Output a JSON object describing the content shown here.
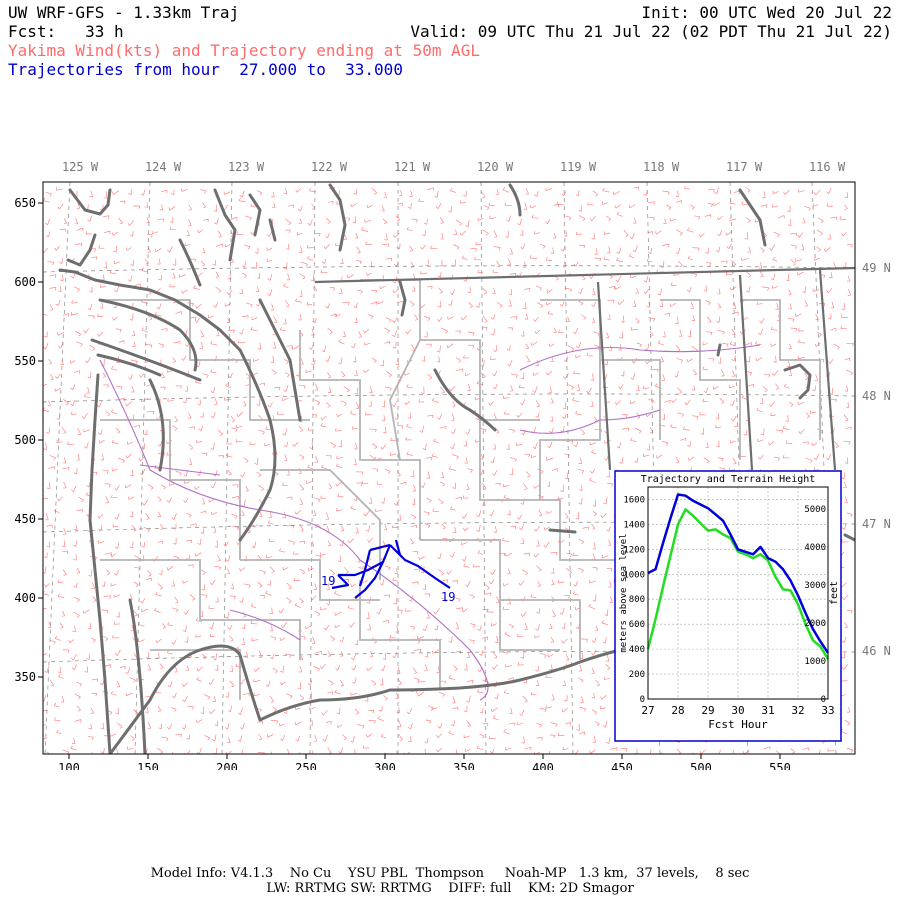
{
  "header": {
    "title": "UW WRF-GFS - 1.33km Traj",
    "init": "Init: 00 UTC Wed 20 Jul 22",
    "fcst": "Fcst:   33 h",
    "valid": "Valid: 09 UTC Thu 21 Jul 22 (02 PDT Thu 21 Jul 22)",
    "subtitle": "Yakima Wind(kts) and Trajectory ending at 50m AGL",
    "trajectory_range": "Trajectories from hour  27.000 to  33.000",
    "colors": {
      "subtitle": "#ff6b6b",
      "trajectory_range": "#0000cc"
    }
  },
  "map": {
    "top_axis_labels": [
      "125 W",
      "124 W",
      "123 W",
      "122 W",
      "121 W",
      "120 W",
      "119 W",
      "118 W",
      "117 W",
      "116 W"
    ],
    "right_axis_labels": [
      "49 N",
      "48 N",
      "47 N",
      "46 N"
    ],
    "x_ticks": [
      "100",
      "150",
      "200",
      "250",
      "300",
      "350",
      "400",
      "450",
      "500",
      "550"
    ],
    "y_ticks": [
      "650",
      "600",
      "550",
      "500",
      "450",
      "400",
      "350"
    ],
    "trajectory_labels": [
      "19",
      "19"
    ],
    "colors": {
      "coast": "#6e6e6e",
      "county": "#b4b4b4",
      "wind": "#ff7070",
      "basin": "#b070c8",
      "trajectory": "#0000dd"
    }
  },
  "inset": {
    "title": "Trajectory and Terrain Height",
    "xlabel": "Fcst Hour",
    "ylabel_left": "meters above sea level",
    "ylabel_right": "feet"
  },
  "chart_data": {
    "type": "line",
    "title": "Trajectory and Terrain Height",
    "xlabel": "Fcst Hour",
    "ylabel": "meters above sea level",
    "y2label": "feet",
    "x_ticks": [
      "27",
      "28",
      "29",
      "30",
      "31",
      "32",
      "33"
    ],
    "y_ticks": [
      "0",
      "200",
      "400",
      "600",
      "800",
      "1000",
      "1200",
      "1400",
      "1600"
    ],
    "y2_ticks": [
      "0",
      "1000",
      "2000",
      "3000",
      "4000",
      "5000"
    ],
    "xlim": [
      27,
      33
    ],
    "ylim": [
      0,
      1700
    ],
    "grid": true,
    "series": [
      {
        "color": "#0000dd",
        "x": [
          27.0,
          27.25,
          27.5,
          27.75,
          28.0,
          28.25,
          28.5,
          28.75,
          29.0,
          29.25,
          29.5,
          29.75,
          30.0,
          30.25,
          30.5,
          30.75,
          31.0,
          31.25,
          31.5,
          31.75,
          32.0,
          32.25,
          32.5,
          32.75,
          33.0
        ],
        "values": [
          1010,
          1040,
          1250,
          1450,
          1640,
          1630,
          1590,
          1560,
          1530,
          1480,
          1430,
          1320,
          1200,
          1180,
          1160,
          1220,
          1130,
          1100,
          1040,
          950,
          830,
          690,
          560,
          460,
          370
        ]
      },
      {
        "color": "#22dd22",
        "x": [
          27.0,
          27.25,
          27.5,
          27.75,
          28.0,
          28.25,
          28.5,
          28.75,
          29.0,
          29.25,
          29.5,
          29.75,
          30.0,
          30.25,
          30.5,
          30.75,
          31.0,
          31.25,
          31.5,
          31.75,
          32.0,
          32.25,
          32.5,
          32.75,
          33.0
        ],
        "values": [
          400,
          640,
          900,
          1150,
          1400,
          1520,
          1470,
          1410,
          1350,
          1360,
          1320,
          1290,
          1180,
          1160,
          1130,
          1160,
          1110,
          980,
          880,
          870,
          760,
          600,
          470,
          420,
          320
        ]
      }
    ]
  },
  "footer": {
    "line1": "Model Info: V4.1.3    No Cu    YSU PBL  Thompson     Noah-MP   1.3 km,  37 levels,    8 sec",
    "line2": "LW: RRTMG SW: RRTMG    DIFF: full    KM: 2D Smagor"
  }
}
